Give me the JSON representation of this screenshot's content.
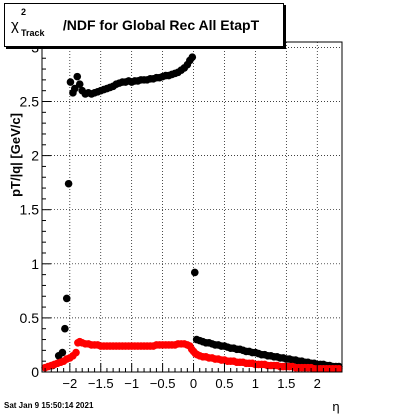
{
  "title": {
    "symbol": "χ",
    "superscript": "2",
    "subscript": "Track",
    "text": "/NDF for Global Rec All EtapT"
  },
  "timestamp": "Sat Jan  9 15:50:14 2021",
  "chart_data": {
    "type": "scatter",
    "xlabel": "η",
    "ylabel": "pT/|q| [GeV/c]",
    "xlim": [
      -2.45,
      2.4
    ],
    "ylim": [
      0,
      3.05
    ],
    "x_ticks": [
      -2,
      -1.5,
      -1,
      -0.5,
      0,
      0.5,
      1,
      1.5,
      2
    ],
    "x_tick_labels": [
      "−2",
      "−1.5",
      "−1",
      "−0.5",
      "0",
      "0.5",
      "1",
      "1.5",
      "2"
    ],
    "y_ticks": [
      0,
      0.5,
      1,
      1.5,
      2,
      2.5,
      3
    ],
    "y_tick_labels": [
      "0",
      "0.5",
      "1",
      "1.5",
      "2",
      "2.5",
      "3"
    ],
    "grid": true,
    "colors": {
      "series_1": "#000000",
      "series_2": "#ff0000"
    },
    "series": [
      {
        "points": [
          [
            -2.28,
            0.06
          ],
          [
            -2.18,
            0.15
          ],
          [
            -2.12,
            0.18
          ],
          [
            -2.08,
            0.4
          ],
          [
            -2.05,
            0.68
          ],
          [
            -2.02,
            1.74
          ],
          [
            -1.99,
            2.68
          ],
          [
            -1.95,
            2.58
          ],
          [
            -1.92,
            2.62
          ],
          [
            -1.88,
            2.73
          ],
          [
            -1.84,
            2.66
          ],
          [
            -1.8,
            2.6
          ],
          [
            -1.75,
            2.57
          ],
          [
            -1.7,
            2.58
          ],
          [
            -1.65,
            2.57
          ],
          [
            -1.6,
            2.58
          ],
          [
            -1.55,
            2.59
          ],
          [
            -1.5,
            2.6
          ],
          [
            -1.45,
            2.61
          ],
          [
            -1.4,
            2.62
          ],
          [
            -1.35,
            2.63
          ],
          [
            -1.3,
            2.64
          ],
          [
            -1.25,
            2.66
          ],
          [
            -1.2,
            2.67
          ],
          [
            -1.15,
            2.68
          ],
          [
            -1.1,
            2.68
          ],
          [
            -1.05,
            2.69
          ],
          [
            -1.0,
            2.68
          ],
          [
            -0.95,
            2.69
          ],
          [
            -0.9,
            2.69
          ],
          [
            -0.85,
            2.7
          ],
          [
            -0.8,
            2.7
          ],
          [
            -0.75,
            2.7
          ],
          [
            -0.7,
            2.71
          ],
          [
            -0.65,
            2.71
          ],
          [
            -0.6,
            2.72
          ],
          [
            -0.55,
            2.72
          ],
          [
            -0.5,
            2.73
          ],
          [
            -0.45,
            2.74
          ],
          [
            -0.4,
            2.74
          ],
          [
            -0.35,
            2.75
          ],
          [
            -0.3,
            2.76
          ],
          [
            -0.25,
            2.77
          ],
          [
            -0.2,
            2.79
          ],
          [
            -0.15,
            2.81
          ],
          [
            -0.1,
            2.84
          ],
          [
            -0.06,
            2.88
          ],
          [
            -0.02,
            2.91
          ],
          [
            0.02,
            0.92
          ],
          [
            0.05,
            0.3
          ],
          [
            0.1,
            0.29
          ],
          [
            0.15,
            0.28
          ],
          [
            0.2,
            0.27
          ],
          [
            0.25,
            0.27
          ],
          [
            0.3,
            0.26
          ],
          [
            0.35,
            0.25
          ],
          [
            0.4,
            0.25
          ],
          [
            0.45,
            0.24
          ],
          [
            0.5,
            0.24
          ],
          [
            0.55,
            0.23
          ],
          [
            0.6,
            0.22
          ],
          [
            0.65,
            0.22
          ],
          [
            0.7,
            0.21
          ],
          [
            0.75,
            0.21
          ],
          [
            0.8,
            0.2
          ],
          [
            0.85,
            0.19
          ],
          [
            0.9,
            0.19
          ],
          [
            0.95,
            0.18
          ],
          [
            1.0,
            0.18
          ],
          [
            1.05,
            0.17
          ],
          [
            1.1,
            0.16
          ],
          [
            1.15,
            0.16
          ],
          [
            1.2,
            0.15
          ],
          [
            1.25,
            0.15
          ],
          [
            1.3,
            0.14
          ],
          [
            1.35,
            0.14
          ],
          [
            1.4,
            0.13
          ],
          [
            1.45,
            0.13
          ],
          [
            1.5,
            0.12
          ],
          [
            1.55,
            0.12
          ],
          [
            1.6,
            0.11
          ],
          [
            1.65,
            0.11
          ],
          [
            1.7,
            0.1
          ],
          [
            1.75,
            0.1
          ],
          [
            1.8,
            0.09
          ],
          [
            1.85,
            0.09
          ],
          [
            1.9,
            0.08
          ],
          [
            1.95,
            0.08
          ],
          [
            2.0,
            0.07
          ],
          [
            2.05,
            0.07
          ],
          [
            2.1,
            0.07
          ],
          [
            2.15,
            0.06
          ],
          [
            2.2,
            0.06
          ],
          [
            2.25,
            0.05
          ],
          [
            2.3,
            0.05
          ],
          [
            2.35,
            0.05
          ]
        ]
      },
      {
        "points": [
          [
            -2.4,
            0.04
          ],
          [
            -2.35,
            0.05
          ],
          [
            -2.3,
            0.06
          ],
          [
            -2.25,
            0.07
          ],
          [
            -2.2,
            0.08
          ],
          [
            -2.15,
            0.09
          ],
          [
            -2.1,
            0.1
          ],
          [
            -2.05,
            0.12
          ],
          [
            -2.0,
            0.13
          ],
          [
            -1.95,
            0.15
          ],
          [
            -1.9,
            0.18
          ],
          [
            -1.87,
            0.27
          ],
          [
            -1.84,
            0.28
          ],
          [
            -1.8,
            0.27
          ],
          [
            -1.75,
            0.26
          ],
          [
            -1.7,
            0.26
          ],
          [
            -1.65,
            0.25
          ],
          [
            -1.6,
            0.25
          ],
          [
            -1.55,
            0.25
          ],
          [
            -1.5,
            0.24
          ],
          [
            -1.45,
            0.24
          ],
          [
            -1.4,
            0.24
          ],
          [
            -1.35,
            0.24
          ],
          [
            -1.3,
            0.24
          ],
          [
            -1.25,
            0.24
          ],
          [
            -1.2,
            0.24
          ],
          [
            -1.15,
            0.24
          ],
          [
            -1.1,
            0.24
          ],
          [
            -1.05,
            0.24
          ],
          [
            -1.0,
            0.24
          ],
          [
            -0.95,
            0.24
          ],
          [
            -0.9,
            0.24
          ],
          [
            -0.85,
            0.24
          ],
          [
            -0.8,
            0.24
          ],
          [
            -0.75,
            0.24
          ],
          [
            -0.7,
            0.24
          ],
          [
            -0.65,
            0.24
          ],
          [
            -0.6,
            0.25
          ],
          [
            -0.55,
            0.25
          ],
          [
            -0.5,
            0.25
          ],
          [
            -0.45,
            0.25
          ],
          [
            -0.4,
            0.25
          ],
          [
            -0.35,
            0.25
          ],
          [
            -0.3,
            0.25
          ],
          [
            -0.25,
            0.26
          ],
          [
            -0.2,
            0.26
          ],
          [
            -0.15,
            0.26
          ],
          [
            -0.1,
            0.25
          ],
          [
            -0.06,
            0.24
          ],
          [
            -0.03,
            0.21
          ],
          [
            0.0,
            0.19
          ],
          [
            0.03,
            0.17
          ],
          [
            0.06,
            0.16
          ],
          [
            0.1,
            0.15
          ],
          [
            0.15,
            0.14
          ],
          [
            0.2,
            0.14
          ],
          [
            0.25,
            0.13
          ],
          [
            0.3,
            0.13
          ],
          [
            0.35,
            0.12
          ],
          [
            0.4,
            0.12
          ],
          [
            0.45,
            0.11
          ],
          [
            0.5,
            0.11
          ],
          [
            0.55,
            0.1
          ],
          [
            0.6,
            0.1
          ],
          [
            0.65,
            0.1
          ],
          [
            0.7,
            0.09
          ],
          [
            0.75,
            0.09
          ],
          [
            0.8,
            0.09
          ],
          [
            0.85,
            0.08
          ],
          [
            0.9,
            0.08
          ],
          [
            0.95,
            0.08
          ],
          [
            1.0,
            0.07
          ],
          [
            1.05,
            0.07
          ],
          [
            1.1,
            0.07
          ],
          [
            1.15,
            0.07
          ],
          [
            1.2,
            0.06
          ],
          [
            1.25,
            0.06
          ],
          [
            1.3,
            0.06
          ],
          [
            1.35,
            0.06
          ],
          [
            1.4,
            0.05
          ],
          [
            1.45,
            0.05
          ],
          [
            1.5,
            0.05
          ],
          [
            1.55,
            0.05
          ],
          [
            1.6,
            0.05
          ],
          [
            1.65,
            0.04
          ],
          [
            1.7,
            0.04
          ],
          [
            1.75,
            0.04
          ],
          [
            1.8,
            0.04
          ],
          [
            1.85,
            0.04
          ],
          [
            1.9,
            0.04
          ],
          [
            1.95,
            0.03
          ],
          [
            2.0,
            0.03
          ],
          [
            2.05,
            0.03
          ],
          [
            2.1,
            0.03
          ],
          [
            2.15,
            0.03
          ],
          [
            2.2,
            0.03
          ],
          [
            2.25,
            0.03
          ],
          [
            2.3,
            0.03
          ],
          [
            2.35,
            0.03
          ]
        ]
      }
    ]
  }
}
